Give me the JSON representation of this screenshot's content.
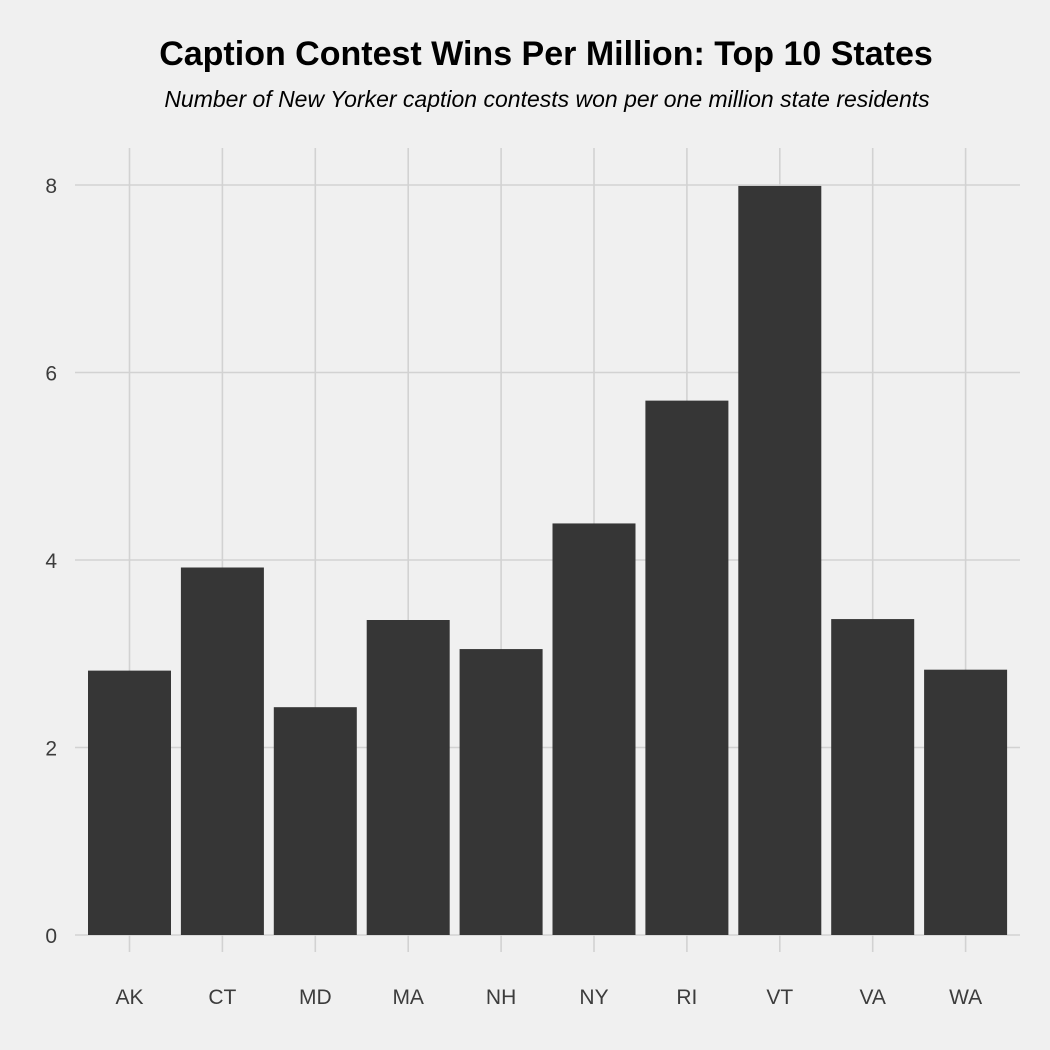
{
  "chart_data": {
    "type": "bar",
    "title": "Caption Contest Wins Per Million: Top 10 States",
    "subtitle": "Number of New Yorker caption contests won per one million state residents",
    "xlabel": "",
    "ylabel": "",
    "categories": [
      "AK",
      "CT",
      "MD",
      "MA",
      "NH",
      "NY",
      "RI",
      "VT",
      "VA",
      "WA"
    ],
    "values": [
      2.82,
      3.92,
      2.43,
      3.36,
      3.05,
      4.39,
      5.7,
      7.99,
      3.37,
      2.83
    ],
    "ylim": [
      0,
      8.4
    ],
    "yticks": [
      0,
      2,
      4,
      6,
      8
    ],
    "ytick_labels": [
      "0",
      "2",
      "4",
      "6",
      "8"
    ],
    "grid": true,
    "colors": {
      "background": "#f0f0f0",
      "bar": "#363636",
      "grid": "#d2d2d2",
      "tick_text": "#3c3c3c",
      "title_text": "#000000"
    }
  }
}
